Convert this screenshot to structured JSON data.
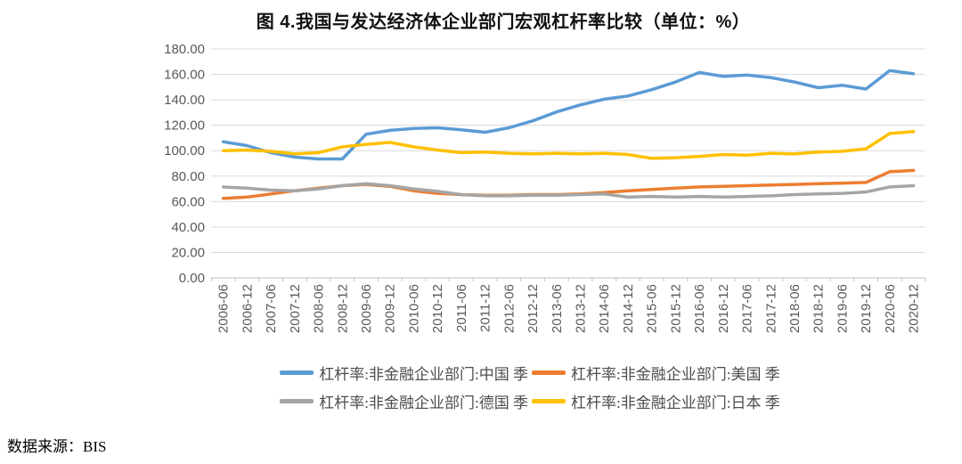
{
  "title": "图 4.我国与发达经济体企业部门宏观杠杆率比较（单位：%）",
  "source_note": "数据来源：BIS",
  "chart_data": {
    "type": "line",
    "title": "图 4.我国与发达经济体企业部门宏观杠杆率比较（单位：%）",
    "unit": "%",
    "xlabel": "",
    "ylabel": "",
    "ylim": [
      0,
      180
    ],
    "ytick_step": 20,
    "ytick_decimals": 2,
    "grid": true,
    "legend_position": "bottom",
    "gridline_color": "#d9d9d9",
    "axis_color": "#bfbfbf",
    "categories": [
      "2006-06",
      "2006-12",
      "2007-06",
      "2007-12",
      "2008-06",
      "2008-12",
      "2009-06",
      "2009-12",
      "2010-06",
      "2010-12",
      "2011-06",
      "2011-12",
      "2012-06",
      "2012-12",
      "2013-06",
      "2013-12",
      "2014-06",
      "2014-12",
      "2015-06",
      "2015-12",
      "2016-06",
      "2016-12",
      "2017-06",
      "2017-12",
      "2018-06",
      "2018-12",
      "2019-06",
      "2019-12",
      "2020-06",
      "2020-12"
    ],
    "series": [
      {
        "name": "杠杆率:非金融企业部门:中国 季",
        "color": "#5B9BD5",
        "values": [
          107,
          104,
          98.5,
          95,
          93.5,
          93.5,
          113,
          116,
          117.5,
          118,
          116.5,
          114.5,
          118,
          123.5,
          130.5,
          136,
          140.5,
          143,
          148,
          154,
          161.5,
          158.5,
          159.5,
          157.5,
          154,
          149.5,
          151.5,
          148.5,
          163,
          160.5
        ]
      },
      {
        "name": "杠杆率:非金融企业部门:美国 季",
        "color": "#ED7D31",
        "values": [
          62.5,
          63.5,
          66,
          68.5,
          70.5,
          72.5,
          73.5,
          72,
          68.5,
          66.5,
          65.5,
          65,
          65,
          65.5,
          65.5,
          66,
          67,
          68.5,
          69.5,
          70.5,
          71.5,
          72,
          72.5,
          73,
          73.5,
          74,
          74.5,
          75,
          83.5,
          84.5
        ]
      },
      {
        "name": "杠杆率:非金融企业部门:德国 季",
        "color": "#A5A5A5",
        "values": [
          71.5,
          70.5,
          69,
          68.5,
          70,
          72.5,
          74,
          72.5,
          70,
          68,
          65.5,
          64.5,
          64.5,
          65,
          65,
          65.5,
          66,
          63.5,
          64,
          63.5,
          64,
          63.5,
          64,
          64.5,
          65.5,
          66,
          66.5,
          67.5,
          71.5,
          72.5
        ]
      },
      {
        "name": "杠杆率:非金融企业部门:日本 季",
        "color": "#FFC000",
        "values": [
          100,
          100.5,
          99.5,
          97.5,
          98.5,
          103,
          105,
          106.5,
          103,
          100.5,
          98.5,
          99,
          98,
          97.5,
          98,
          97.5,
          98,
          97,
          94,
          94.5,
          95.5,
          97,
          96.5,
          98,
          97.5,
          99,
          99.5,
          101.5,
          113.5,
          115
        ]
      }
    ]
  }
}
